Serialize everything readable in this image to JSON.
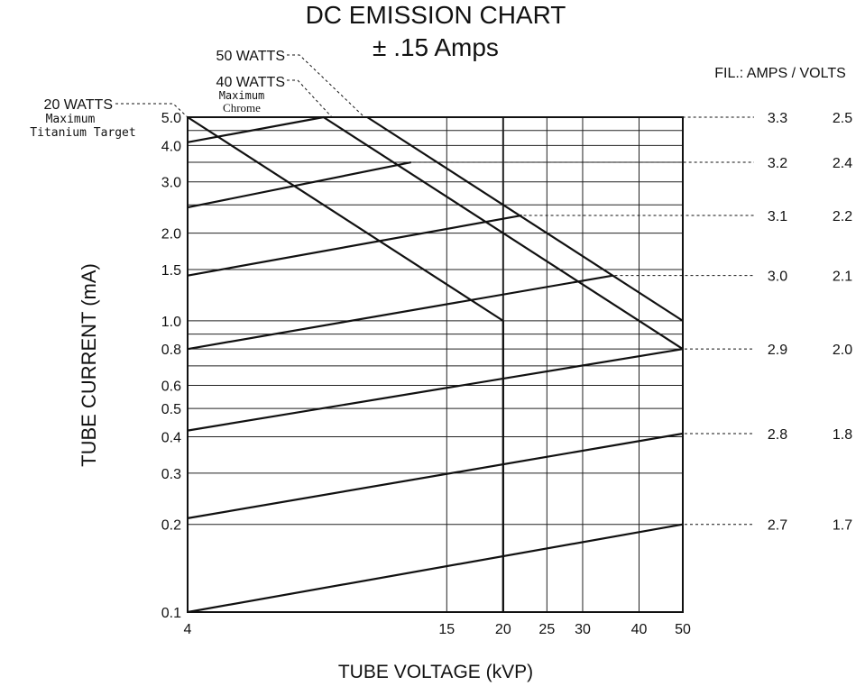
{
  "chart_data": {
    "type": "line",
    "title": "DC EMISSION CHART",
    "subtitle": "± .15 Amps",
    "xlabel": "TUBE VOLTAGE (kVP)",
    "ylabel": "TUBE CURRENT (mA)",
    "x_scale": "log",
    "y_scale": "log",
    "xlim": [
      4,
      50
    ],
    "ylim": [
      0.1,
      5.0
    ],
    "x_ticks": [
      4,
      15,
      20,
      25,
      30,
      40,
      50
    ],
    "x_tick_labels": [
      "4",
      "15",
      "20",
      "25",
      "30",
      "40",
      "50"
    ],
    "y_ticks": [
      0.1,
      0.2,
      0.3,
      0.4,
      0.5,
      0.6,
      0.8,
      1.0,
      1.5,
      2.0,
      3.0,
      4.0,
      5.0
    ],
    "y_tick_labels": [
      "0.1",
      "0.2",
      "0.3",
      "0.4",
      "0.5",
      "0.6",
      "0.8",
      "1.0",
      "1.5",
      "2.0",
      "3.0",
      "4.0",
      "5.0"
    ],
    "grid": true,
    "filament_header": "FIL.:  AMPS / VOLTS",
    "filament_series": [
      {
        "amps": "2.7",
        "volts": "1.7",
        "x": [
          4,
          50
        ],
        "y": [
          0.1,
          0.2
        ]
      },
      {
        "amps": "2.8",
        "volts": "1.8",
        "x": [
          4,
          50
        ],
        "y": [
          0.21,
          0.41
        ]
      },
      {
        "amps": "2.9",
        "volts": "2.0",
        "x": [
          4,
          50
        ],
        "y": [
          0.42,
          0.8
        ]
      },
      {
        "amps": "3.0",
        "volts": "2.1",
        "x": [
          4,
          35
        ],
        "y": [
          0.8,
          1.43
        ]
      },
      {
        "amps": "3.1",
        "volts": "2.2",
        "x": [
          4,
          22
        ],
        "y": [
          1.43,
          2.3
        ]
      },
      {
        "amps": "3.2",
        "volts": "2.4",
        "x": [
          4,
          12.5
        ],
        "y": [
          2.45,
          3.5
        ]
      },
      {
        "amps": "3.3",
        "volts": "2.5",
        "x": [
          4,
          8
        ],
        "y": [
          4.1,
          5.0
        ]
      }
    ],
    "watt_series": [
      {
        "name": "20 WATTS",
        "note": [
          "Maximum",
          "Titanium Target"
        ],
        "x": [
          4,
          20
        ],
        "y": [
          5.0,
          1.0
        ]
      },
      {
        "name": "40 WATTS",
        "note": [
          "Maximum",
          "Chrome"
        ],
        "x": [
          8,
          50
        ],
        "y": [
          5.0,
          0.8
        ]
      },
      {
        "name": "50 WATTS",
        "note": [],
        "x": [
          10,
          50
        ],
        "y": [
          5.0,
          1.0
        ]
      }
    ]
  }
}
